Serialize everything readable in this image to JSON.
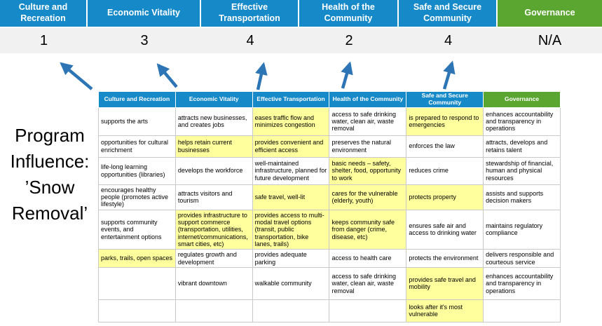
{
  "colors": {
    "header_blue": "#1689c9",
    "header_green": "#5ba630",
    "score_band_bg": "#f1f1f1",
    "highlight_yellow": "#ffff9e",
    "arrow_blue": "#2e75b6",
    "table_border": "#c9c9c9",
    "text_black": "#000000"
  },
  "scoreboard": {
    "columns": [
      {
        "label": "Culture and Recreation",
        "score": "1",
        "theme": "blue"
      },
      {
        "label": "Economic Vitality",
        "score": "3",
        "theme": "blue"
      },
      {
        "label": "Effective Transportation",
        "score": "4",
        "theme": "blue"
      },
      {
        "label": "Health of the Community",
        "score": "2",
        "theme": "blue"
      },
      {
        "label": "Safe and Secure Community",
        "score": "4",
        "theme": "blue"
      },
      {
        "label": "Governance",
        "score": "N/A",
        "theme": "green"
      }
    ]
  },
  "program_label": {
    "full_text": "Program Influence: ’Snow Removal’",
    "lines": [
      "Program",
      "Influence:",
      "’Snow",
      "Removal’"
    ]
  },
  "matrix": {
    "headers": [
      {
        "label": "Culture and Recreation",
        "theme": "blue"
      },
      {
        "label": "Economic Vitality",
        "theme": "blue"
      },
      {
        "label": "Effective Transportation",
        "theme": "blue"
      },
      {
        "label": "Health of the Community",
        "theme": "blue"
      },
      {
        "label": "Safe and Secure Community",
        "theme": "blue"
      },
      {
        "label": "Governance",
        "theme": "green"
      }
    ],
    "rows": [
      [
        {
          "text": "supports the arts",
          "hl": false
        },
        {
          "text": "attracts new businesses, and creates jobs",
          "hl": false
        },
        {
          "text": "eases traffic flow and minimizes congestion",
          "hl": true
        },
        {
          "text": "access to safe drinking water, clean air, waste removal",
          "hl": false
        },
        {
          "text": "is prepared to respond to emergencies",
          "hl": true
        },
        {
          "text": "enhances accountability and transparency in operations",
          "hl": false
        }
      ],
      [
        {
          "text": "opportunities for cultural enrichment",
          "hl": false
        },
        {
          "text": "helps retain current businesses",
          "hl": true
        },
        {
          "text": "provides convenient and efficient access",
          "hl": true
        },
        {
          "text": "preserves the natural environment",
          "hl": false
        },
        {
          "text": "enforces the law",
          "hl": false
        },
        {
          "text": "attracts, develops and retains talent",
          "hl": false
        }
      ],
      [
        {
          "text": "life-long learning opportunities (libraries)",
          "hl": false
        },
        {
          "text": "develops the workforce",
          "hl": false
        },
        {
          "text": "well-maintained infrastructure, planned for future development",
          "hl": false
        },
        {
          "text": "basic needs – safety, shelter, food, opportunity to work",
          "hl": true
        },
        {
          "text": "reduces crime",
          "hl": false
        },
        {
          "text": "stewardship of financial, human and physical resources",
          "hl": false
        }
      ],
      [
        {
          "text": "encourages healthy people (promotes active lifestyle)",
          "hl": false
        },
        {
          "text": "attracts visitors and tourism",
          "hl": false
        },
        {
          "text": "safe travel, well-lit",
          "hl": true
        },
        {
          "text": "cares for the vulnerable (elderly, youth)",
          "hl": true
        },
        {
          "text": "protects property",
          "hl": true
        },
        {
          "text": "assists and supports decision makers",
          "hl": false
        }
      ],
      [
        {
          "text": "supports community events, and entertainment options",
          "hl": false
        },
        {
          "text": "provides infrastructure to support commerce (transportation, utilities, internet/communications, smart cities, etc)",
          "hl": true
        },
        {
          "text": "provides access to multi-modal travel options (transit, public transportation, bike lanes, trails)",
          "hl": true
        },
        {
          "text": "keeps community safe from danger (crime, disease, etc)",
          "hl": true
        },
        {
          "text": "ensures safe air and access to drinking water",
          "hl": false
        },
        {
          "text": "maintains regulatory compliance",
          "hl": false
        }
      ],
      [
        {
          "text": "parks, trails, open spaces",
          "hl": true
        },
        {
          "text": "regulates growth and development",
          "hl": false
        },
        {
          "text": "provides adequate parking",
          "hl": false
        },
        {
          "text": "access to health care",
          "hl": false
        },
        {
          "text": "protects the environment",
          "hl": false
        },
        {
          "text": "delivers responsible and courteous service",
          "hl": false
        }
      ],
      [
        {
          "text": "",
          "hl": false
        },
        {
          "text": "vibrant downtown",
          "hl": false
        },
        {
          "text": "walkable community",
          "hl": false
        },
        {
          "text": "access to safe drinking water, clean air, waste removal",
          "hl": false
        },
        {
          "text": "provides safe travel and mobility",
          "hl": true
        },
        {
          "text": "enhances accountability and transparency in operations",
          "hl": false
        }
      ],
      [
        {
          "text": "",
          "hl": false
        },
        {
          "text": "",
          "hl": false
        },
        {
          "text": "",
          "hl": false
        },
        {
          "text": "",
          "hl": false
        },
        {
          "text": "looks after it's most vulnerable",
          "hl": true
        },
        {
          "text": "",
          "hl": false
        }
      ]
    ]
  }
}
